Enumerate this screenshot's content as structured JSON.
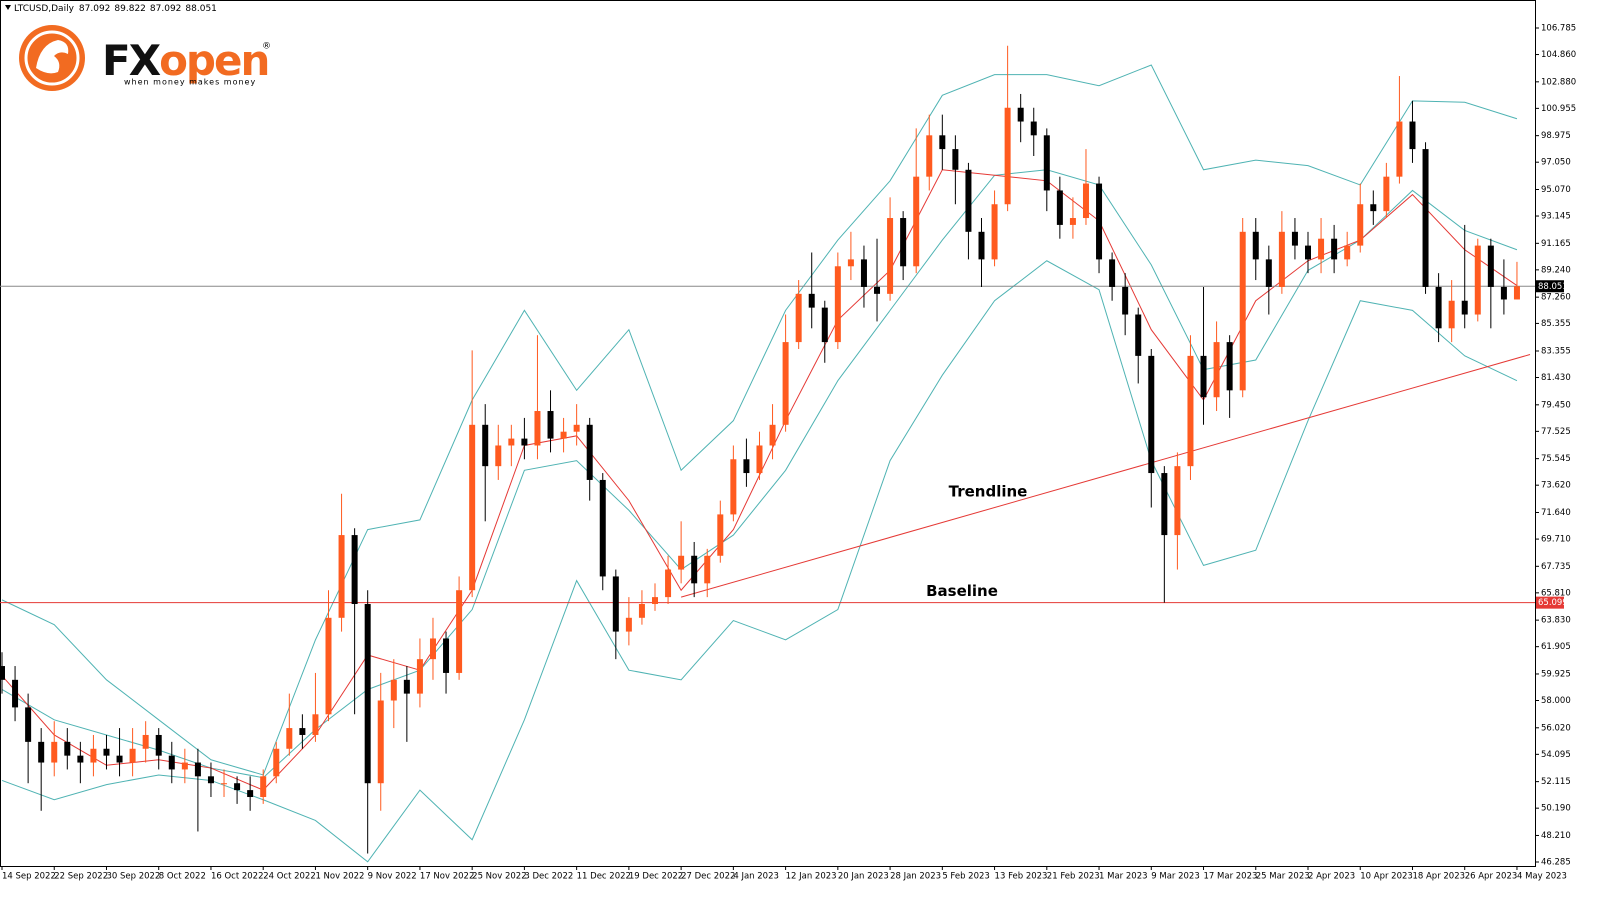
{
  "chart_data": {
    "type": "candlestick",
    "symbol": "LTCUSD,Daily",
    "logo": {
      "brand_a": "FX",
      "brand_b": "open",
      "mark": "®",
      "tagline": "when money makes money"
    },
    "x": [
      "2022-09-14",
      "2022-09-16",
      "2022-09-18",
      "2022-09-20",
      "2022-09-22",
      "2022-09-24",
      "2022-09-26",
      "2022-09-28",
      "2022-09-30",
      "2022-10-02",
      "2022-10-04",
      "2022-10-06",
      "2022-10-08",
      "2022-10-10",
      "2022-10-12",
      "2022-10-14",
      "2022-10-16",
      "2022-10-18",
      "2022-10-20",
      "2022-10-22",
      "2022-10-24",
      "2022-10-26",
      "2022-10-28",
      "2022-10-30",
      "2022-11-01",
      "2022-11-03",
      "2022-11-05",
      "2022-11-07",
      "2022-11-09",
      "2022-11-11",
      "2022-11-13",
      "2022-11-15",
      "2022-11-17",
      "2022-11-19",
      "2022-11-21",
      "2022-11-23",
      "2022-11-25",
      "2022-11-27",
      "2022-11-29",
      "2022-12-01",
      "2022-12-03",
      "2022-12-05",
      "2022-12-07",
      "2022-12-09",
      "2022-12-11",
      "2022-12-13",
      "2022-12-15",
      "2022-12-17",
      "2022-12-19",
      "2022-12-21",
      "2022-12-23",
      "2022-12-25",
      "2022-12-27",
      "2022-12-29",
      "2022-12-31",
      "2023-01-02",
      "2023-01-04",
      "2023-01-06",
      "2023-01-08",
      "2023-01-10",
      "2023-01-12",
      "2023-01-14",
      "2023-01-16",
      "2023-01-18",
      "2023-01-20",
      "2023-01-22",
      "2023-01-24",
      "2023-01-26",
      "2023-01-28",
      "2023-01-30",
      "2023-02-01",
      "2023-02-03",
      "2023-02-05",
      "2023-02-07",
      "2023-02-09",
      "2023-02-11",
      "2023-02-13",
      "2023-02-15",
      "2023-02-17",
      "2023-02-19",
      "2023-02-21",
      "2023-02-23",
      "2023-02-25",
      "2023-02-27",
      "2023-03-01",
      "2023-03-03",
      "2023-03-05",
      "2023-03-07",
      "2023-03-09",
      "2023-03-11",
      "2023-03-13",
      "2023-03-15",
      "2023-03-17",
      "2023-03-19",
      "2023-03-21",
      "2023-03-23",
      "2023-03-25",
      "2023-03-27",
      "2023-03-29",
      "2023-03-31",
      "2023-04-02",
      "2023-04-04",
      "2023-04-06",
      "2023-04-08",
      "2023-04-10",
      "2023-04-12",
      "2023-04-14",
      "2023-04-16",
      "2023-04-18",
      "2023-04-20",
      "2023-04-22",
      "2023-04-24",
      "2023-04-26",
      "2023-04-28",
      "2023-04-30",
      "2023-05-02",
      "2023-05-04"
    ],
    "open": [
      60.5,
      59.5,
      57.5,
      55,
      53.5,
      55,
      54,
      53.5,
      54.5,
      54,
      53.5,
      54.5,
      55.5,
      54,
      53,
      53.5,
      52.5,
      52,
      52,
      51.5,
      51,
      52.5,
      54.5,
      56,
      55.5,
      57,
      64,
      70,
      65,
      52,
      58,
      59.5,
      58.5,
      61,
      62.5,
      60,
      66,
      78,
      75,
      76.5,
      77,
      76.5,
      79,
      77,
      77.5,
      78,
      74,
      67,
      63,
      64,
      65,
      65.5,
      67.5,
      68.5,
      66.5,
      68.5,
      71.5,
      75.5,
      74.5,
      76.5,
      78,
      84,
      87.5,
      86.5,
      84,
      89.5,
      90,
      88,
      87.5,
      93,
      89.5,
      96,
      99,
      98,
      96.5,
      92,
      90,
      94,
      101,
      100,
      99,
      95,
      92.5,
      93,
      95.5,
      90,
      88,
      86,
      83,
      74.5,
      70,
      75,
      83,
      80,
      84,
      80.5,
      92,
      90,
      88,
      92,
      91,
      90,
      91.5,
      90,
      91,
      94,
      93.5,
      96,
      100,
      98,
      88,
      85,
      87,
      86,
      91,
      88,
      87.092
    ],
    "high": [
      61.5,
      60.5,
      58.5,
      56,
      56.5,
      56,
      55,
      55.5,
      55.5,
      56,
      56,
      56.5,
      56,
      55,
      54.5,
      54.5,
      53.5,
      53,
      52.5,
      52.5,
      53,
      55,
      58.5,
      57,
      60,
      66,
      73,
      70.5,
      66,
      60,
      61,
      60.5,
      62.5,
      64,
      63,
      67,
      83.4,
      79.5,
      78,
      78,
      78.5,
      84.5,
      80.5,
      78.5,
      79.5,
      78.5,
      74.5,
      67.5,
      65.5,
      66,
      66.5,
      68.5,
      71,
      69.5,
      69,
      72.5,
      76.5,
      77,
      77.5,
      79.5,
      86,
      88.5,
      90.5,
      87,
      90.5,
      92,
      91,
      91.5,
      94.5,
      93.5,
      99.5,
      100.5,
      100.5,
      99,
      97,
      93,
      95,
      105.5,
      102,
      101,
      99.5,
      96,
      94.5,
      98,
      96,
      90.5,
      89,
      86.5,
      83.5,
      75,
      76,
      84.5,
      88,
      85.5,
      84.5,
      93,
      93,
      91,
      93.5,
      93,
      92,
      93,
      92.5,
      92,
      95.5,
      95,
      97,
      103.3,
      101.5,
      98.5,
      89,
      88.5,
      92.5,
      91.5,
      91.5,
      90,
      89.822
    ],
    "low": [
      58.5,
      56.5,
      52,
      50,
      52.5,
      53,
      52,
      52.5,
      53,
      52.5,
      52.5,
      53.5,
      53,
      52,
      52,
      48.5,
      51,
      51,
      50.5,
      50,
      50.5,
      52,
      54,
      54.5,
      55,
      56.5,
      63,
      57,
      46.9,
      50,
      56,
      55,
      57.5,
      59.5,
      58.5,
      59.5,
      65.5,
      71,
      74,
      75,
      75.5,
      75.5,
      76,
      76,
      76.5,
      72.5,
      66,
      61,
      62,
      63.5,
      64.5,
      65,
      66.5,
      65.5,
      65.5,
      68,
      71,
      73.5,
      74,
      75.5,
      77.5,
      83.5,
      85,
      82.5,
      83.5,
      88.5,
      86.5,
      85.5,
      87,
      88.5,
      89,
      95,
      96.5,
      94,
      90,
      88,
      89.5,
      93.5,
      98.5,
      97.5,
      93.5,
      91.5,
      91.5,
      92.5,
      89,
      87,
      84.5,
      81,
      72,
      65.1,
      67.5,
      74,
      78,
      79,
      78.5,
      80,
      88.5,
      86,
      87.5,
      90,
      89,
      89,
      89,
      89.5,
      90.5,
      92.5,
      93,
      95.5,
      97,
      87.5,
      84,
      84,
      85,
      85.5,
      85,
      86,
      87.092
    ],
    "close": [
      59.5,
      57.5,
      55,
      53.5,
      55,
      54,
      53.5,
      54.5,
      54,
      53.5,
      54.5,
      55.5,
      54,
      53,
      53.5,
      52.5,
      52,
      52,
      51.5,
      51,
      52.5,
      54.5,
      56,
      55.5,
      57,
      64,
      70,
      65,
      52,
      58,
      59.5,
      58.5,
      61,
      62.5,
      60,
      66,
      78,
      75,
      76.5,
      77,
      76.5,
      79,
      77,
      77.5,
      78,
      74,
      67,
      63,
      64,
      65,
      65.5,
      67.5,
      68.5,
      66.5,
      68.5,
      71.5,
      75.5,
      74.5,
      76.5,
      78,
      84,
      87.5,
      86.5,
      84,
      89.5,
      90,
      88,
      87.5,
      93,
      89.5,
      96,
      99,
      98,
      96.5,
      92,
      90,
      94,
      101,
      100,
      99,
      95,
      92.5,
      93,
      95.5,
      90,
      88,
      86,
      83,
      74.5,
      70,
      75,
      83,
      80,
      84,
      80.5,
      92,
      90,
      88,
      92,
      91,
      90,
      91.5,
      90,
      91,
      94,
      93.5,
      96,
      100,
      98,
      88,
      85,
      87,
      86,
      91,
      88,
      87.092,
      88.051
    ],
    "up_color": "#ff5a1f",
    "down_color": "#000000",
    "indicators": [
      {
        "color": "#4fb3b3",
        "values": [
          65.3,
          63.5,
          59.5,
          56.6,
          53.7,
          52.6,
          62.4,
          70.4,
          71.1,
          79.8,
          86.3,
          80.5,
          84.9,
          74.7,
          78.3,
          86.3,
          91.4,
          95.7,
          101.9,
          103.4,
          103.4,
          102.6,
          104.1,
          96.5,
          97.2,
          96.8,
          95.4,
          101.5,
          101.4,
          100.2
        ]
      },
      {
        "color": "#4fb3b3",
        "values": [
          58.8,
          56.6,
          55.5,
          54.4,
          53.1,
          52.4,
          55.9,
          58.8,
          60.2,
          64.6,
          74.7,
          75.4,
          71.8,
          67.5,
          70.0,
          74.7,
          81.2,
          86.3,
          91.4,
          96.1,
          96.5,
          95.4,
          89.6,
          82.0,
          82.7,
          89.2,
          91.4,
          95.0,
          92.1,
          90.7
        ]
      },
      {
        "color": "#4fb3b3",
        "values": [
          52.2,
          50.8,
          51.9,
          52.6,
          52.2,
          50.8,
          49.3,
          46.3,
          51.5,
          47.9,
          56.6,
          66.7,
          60.2,
          59.5,
          63.8,
          62.4,
          64.6,
          75.4,
          81.6,
          87.0,
          89.9,
          87.8,
          75.4,
          67.8,
          68.9,
          78.3,
          87.0,
          86.3,
          83.0,
          81.2
        ]
      },
      {
        "color": "#e53935",
        "values": [
          59.8,
          55.5,
          53.3,
          53.7,
          53.1,
          51.5,
          55.5,
          61.3,
          60.2,
          66.0,
          76.5,
          77.2,
          72.5,
          66.0,
          70.4,
          78.3,
          85.6,
          89.2,
          96.5,
          96.1,
          95.7,
          92.8,
          84.9,
          79.8,
          87.0,
          89.9,
          91.4,
          94.7,
          90.7,
          88.1
        ]
      }
    ],
    "trendline": {
      "label": "Trendline",
      "color": "#e53935",
      "x": [
        "2022-12-27",
        "2023-05-06"
      ],
      "values": [
        65.5,
        83.1
      ]
    },
    "baseline": {
      "label": "Baseline",
      "value": 65.099,
      "color": "#e53935"
    },
    "ylim": [
      46.285,
      106.785
    ],
    "yticks": [
      106.785,
      {
        "value": 104.86,
        "label": "104.860"
      },
      {
        "value": 102.88,
        "label": "102.880"
      },
      100.955,
      98.975,
      {
        "value": 97.05,
        "label": "97.050"
      },
      {
        "value": 95.07,
        "label": "95.070"
      },
      93.145,
      91.165,
      {
        "value": 89.24,
        "label": "89.240"
      },
      {
        "value": 87.26,
        "label": "87.260"
      },
      85.355,
      83.355,
      {
        "value": 81.43,
        "label": "81.430"
      },
      {
        "value": 79.45,
        "label": "79.450"
      },
      77.525,
      75.545,
      {
        "value": 73.62,
        "label": "73.620"
      },
      {
        "value": 71.64,
        "label": "71.640"
      },
      {
        "value": 69.71,
        "label": "69.710"
      },
      67.735,
      {
        "value": 65.81,
        "label": "65.810"
      },
      {
        "value": 63.83,
        "label": "63.830"
      },
      61.905,
      59.925,
      {
        "value": 58,
        "label": "58.000"
      },
      {
        "value": 56.02,
        "label": "56.020"
      },
      54.095,
      52.115,
      {
        "value": 50.19,
        "label": "50.190"
      },
      {
        "value": 48.21,
        "label": "48.210"
      },
      46.285
    ],
    "xticks": [
      {
        "value": "2022-09-14",
        "label": "14 Sep 2022"
      },
      {
        "value": "2022-09-22",
        "label": "22 Sep 2022"
      },
      {
        "value": "2022-09-30",
        "label": "30 Sep 2022"
      },
      {
        "value": "2022-10-08",
        "label": "8 Oct 2022"
      },
      {
        "value": "2022-10-16",
        "label": "16 Oct 2022"
      },
      {
        "value": "2022-10-24",
        "label": "24 Oct 2022"
      },
      {
        "value": "2022-11-01",
        "label": "1 Nov 2022"
      },
      {
        "value": "2022-11-09",
        "label": "9 Nov 2022"
      },
      {
        "value": "2022-11-17",
        "label": "17 Nov 2022"
      },
      {
        "value": "2022-11-25",
        "label": "25 Nov 2022"
      },
      {
        "value": "2022-12-03",
        "label": "3 Dec 2022"
      },
      {
        "value": "2022-12-11",
        "label": "11 Dec 2022"
      },
      {
        "value": "2022-12-19",
        "label": "19 Dec 2022"
      },
      {
        "value": "2022-12-27",
        "label": "27 Dec 2022"
      },
      {
        "value": "2023-01-04",
        "label": "4 Jan 2023"
      },
      {
        "value": "2023-01-12",
        "label": "12 Jan 2023"
      },
      {
        "value": "2023-01-20",
        "label": "20 Jan 2023"
      },
      {
        "value": "2023-01-28",
        "label": "28 Jan 2023"
      },
      {
        "value": "2023-02-05",
        "label": "5 Feb 2023"
      },
      {
        "value": "2023-02-13",
        "label": "13 Feb 2023"
      },
      {
        "value": "2023-02-21",
        "label": "21 Feb 2023"
      },
      {
        "value": "2023-03-01",
        "label": "1 Mar 2023"
      },
      {
        "value": "2023-03-09",
        "label": "9 Mar 2023"
      },
      {
        "value": "2023-03-17",
        "label": "17 Mar 2023"
      },
      {
        "value": "2023-03-25",
        "label": "25 Mar 2023"
      },
      {
        "value": "2023-04-02",
        "label": "2 Apr 2023"
      },
      {
        "value": "2023-04-10",
        "label": "10 Apr 2023"
      },
      {
        "value": "2023-04-18",
        "label": "18 Apr 2023"
      },
      {
        "value": "2023-04-26",
        "label": "26 Apr 2023"
      },
      {
        "value": "2023-05-04",
        "label": "4 May 2023"
      }
    ]
  }
}
